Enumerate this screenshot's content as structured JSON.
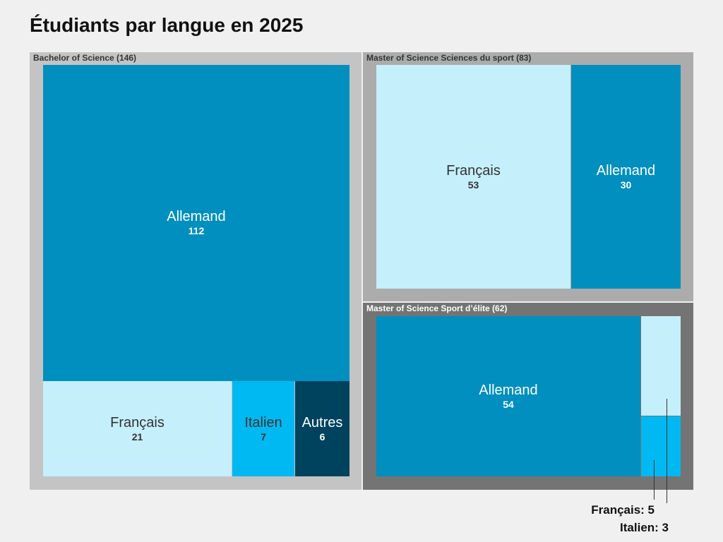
{
  "title": "Étudiants par langue en 2025",
  "colors": {
    "allemand": "#008fbe",
    "francais": "#c5effb",
    "italien": "#00b9f2",
    "autres": "#00435e",
    "group_light": "#c4c4c4",
    "group_mid": "#acacac",
    "group_dark": "#747474"
  },
  "chart_data": {
    "type": "treemap",
    "title": "Étudiants par langue en 2025",
    "groups": [
      {
        "label": "Bachelor of Science (146)",
        "name": "Bachelor of Science",
        "total": 146,
        "items": [
          {
            "label": "Allemand",
            "value": 112
          },
          {
            "label": "Français",
            "value": 21
          },
          {
            "label": "Italien",
            "value": 7
          },
          {
            "label": "Autres",
            "value": 6
          }
        ]
      },
      {
        "label": "Master of Science Sciences du sport (83)",
        "name": "Master of Science Sciences du sport",
        "total": 83,
        "items": [
          {
            "label": "Français",
            "value": 53
          },
          {
            "label": "Allemand",
            "value": 30
          }
        ]
      },
      {
        "label": "Master of Science Sport d’élite (62)",
        "name": "Master of Science Sport d’élite",
        "total": 62,
        "items": [
          {
            "label": "Allemand",
            "value": 54
          },
          {
            "label": "Français",
            "value": 5
          },
          {
            "label": "Italien",
            "value": 3
          }
        ]
      }
    ],
    "annotations": [
      "Français: 5",
      "Italien: 3"
    ]
  }
}
